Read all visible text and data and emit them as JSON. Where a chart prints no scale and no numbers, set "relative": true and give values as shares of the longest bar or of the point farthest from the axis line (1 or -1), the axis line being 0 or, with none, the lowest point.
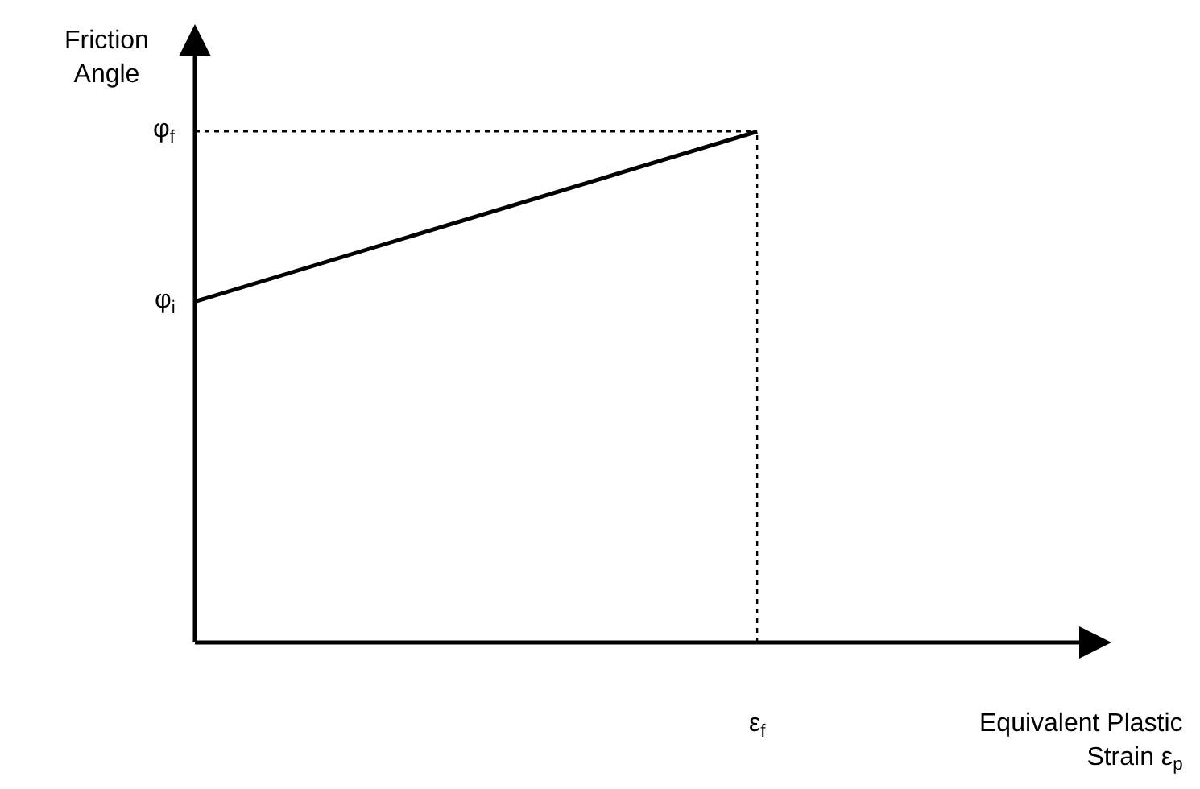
{
  "chart_data": {
    "type": "line",
    "relative": true,
    "xlabel": "Equivalent Plastic Strain ε$_{p}$",
    "ylabel": "Friction Angle",
    "categories": [
      null,
      null
    ],
    "series": [
      {
        "color": "#000000",
        "values": [
          0.667,
          1
        ]
      }
    ],
    "annotations": [
      "φ$_{i}$",
      "φ$_{f}$",
      "ε$_{f}$"
    ],
    "grid": false
  }
}
